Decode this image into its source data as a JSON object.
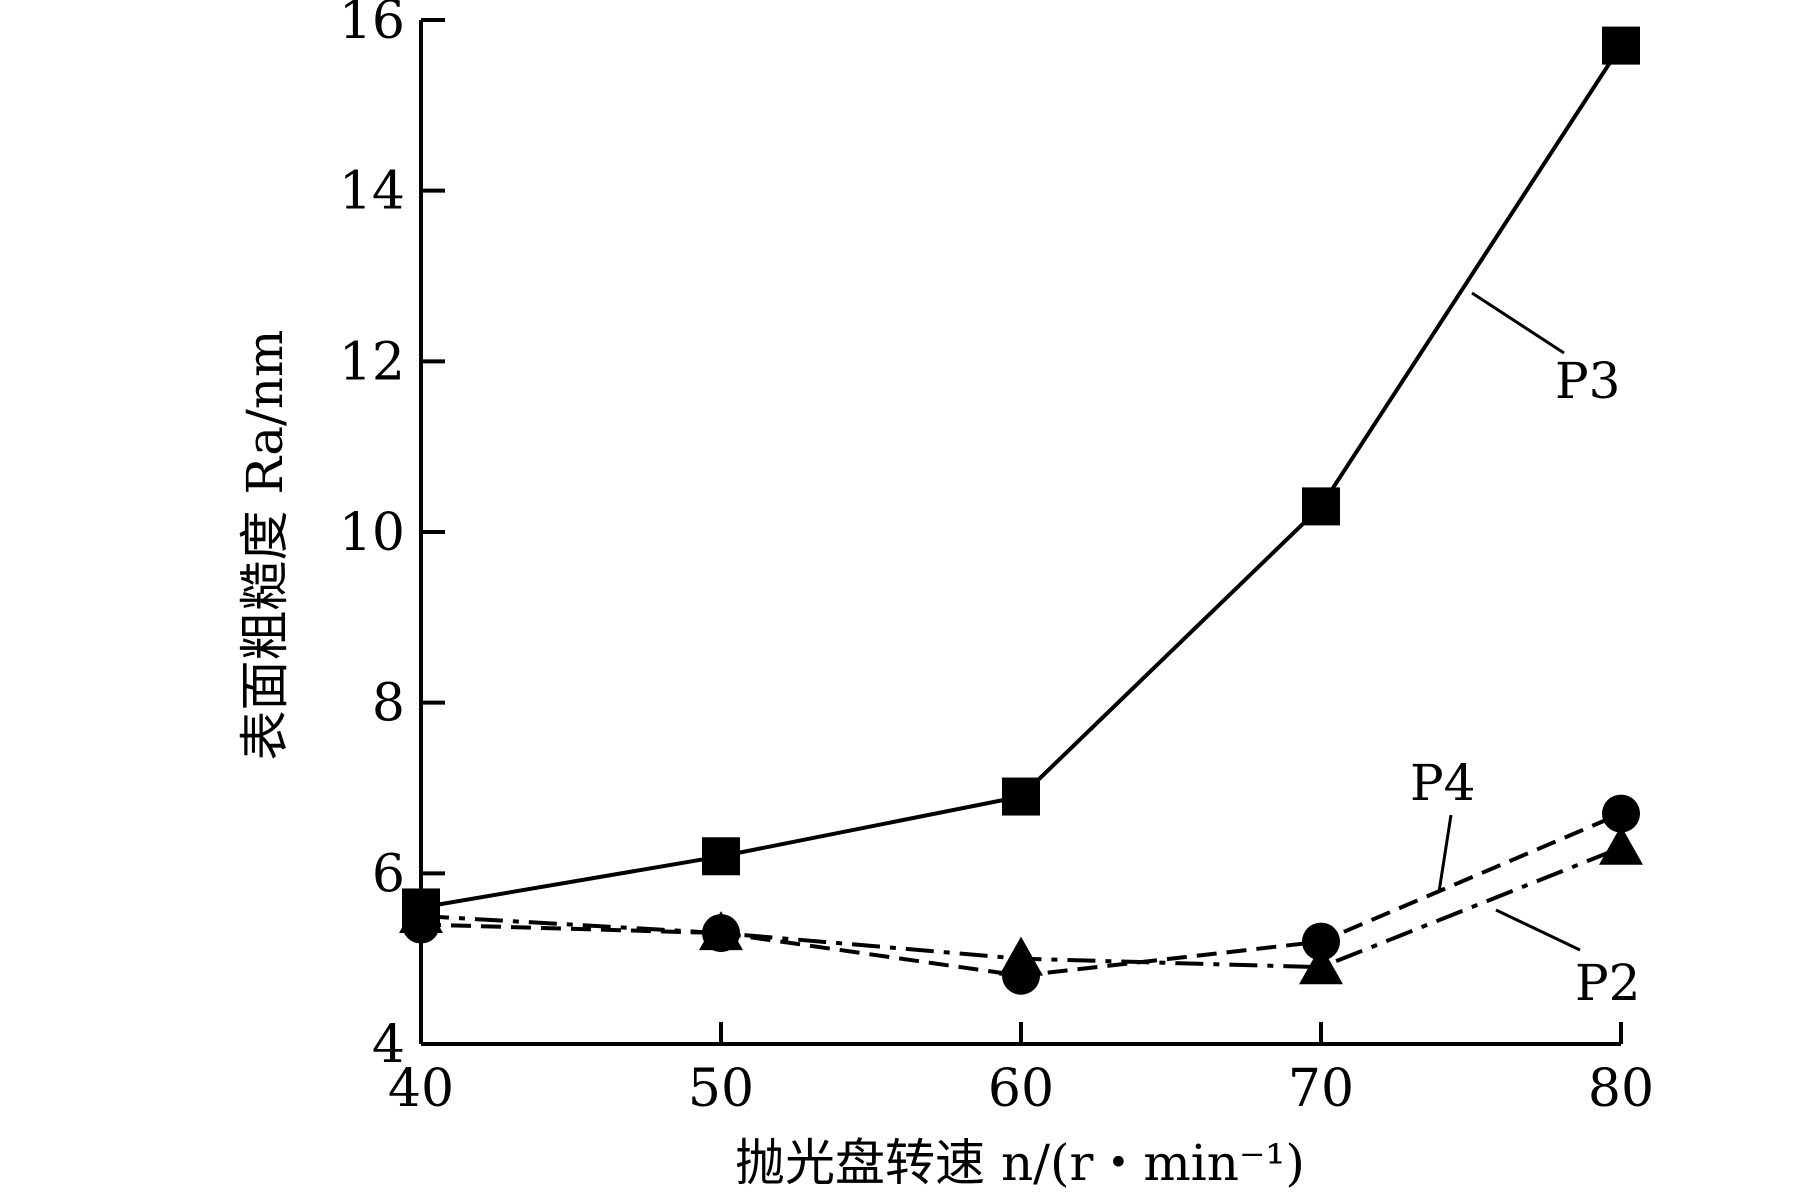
{
  "chart_data": {
    "type": "line",
    "xlabel": "抛光盘转速 n/(r・min⁻¹)",
    "ylabel": "表面粗糙度 Ra/nm",
    "xlim": [
      40,
      80
    ],
    "ylim": [
      4,
      16
    ],
    "xticks": [
      40,
      50,
      60,
      70,
      80
    ],
    "yticks": [
      4,
      6,
      8,
      10,
      12,
      14,
      16
    ],
    "grid": false,
    "legend": "none (series labelled with leader lines)",
    "x": [
      40,
      50,
      60,
      70,
      80
    ],
    "series": [
      {
        "name": "P3",
        "marker": "square",
        "line": "solid",
        "values": [
          5.6,
          6.2,
          6.9,
          10.3,
          15.7
        ]
      },
      {
        "name": "P4",
        "marker": "circle",
        "line": "dashed",
        "values": [
          5.4,
          5.3,
          4.8,
          5.2,
          6.7
        ]
      },
      {
        "name": "P2",
        "marker": "triangle",
        "line": "dash-dot",
        "values": [
          5.5,
          5.3,
          5.0,
          4.9,
          6.3
        ]
      }
    ]
  }
}
